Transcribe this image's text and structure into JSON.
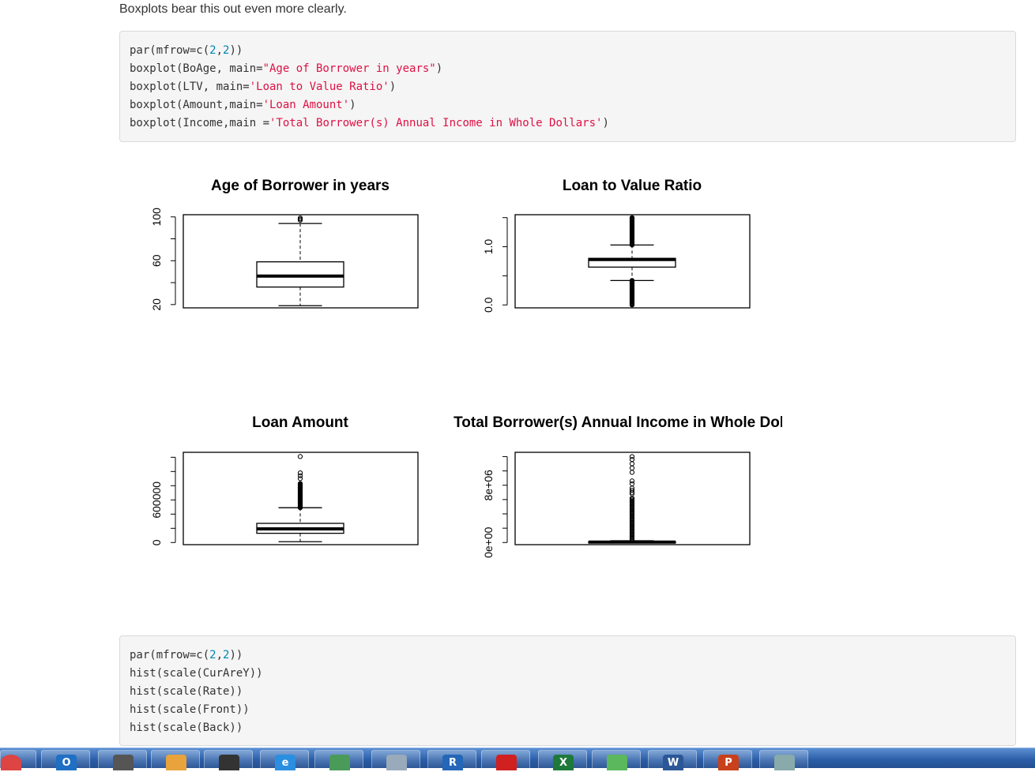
{
  "intro_text": "Boxplots bear this out even more clearly.",
  "code_block_1": [
    [
      {
        "t": "par(mfrow=c(",
        "c": "plain"
      },
      {
        "t": "2",
        "c": "num"
      },
      {
        "t": ",",
        "c": "plain"
      },
      {
        "t": "2",
        "c": "num"
      },
      {
        "t": "))",
        "c": "plain"
      }
    ],
    [
      {
        "t": "boxplot(BoAge, main=",
        "c": "plain"
      },
      {
        "t": "\"Age of Borrower in years\"",
        "c": "str"
      },
      {
        "t": ")",
        "c": "plain"
      }
    ],
    [
      {
        "t": "boxplot(LTV, main=",
        "c": "plain"
      },
      {
        "t": "'Loan to Value Ratio'",
        "c": "str"
      },
      {
        "t": ")",
        "c": "plain"
      }
    ],
    [
      {
        "t": "boxplot(Amount,main=",
        "c": "plain"
      },
      {
        "t": "'Loan Amount'",
        "c": "str"
      },
      {
        "t": ")",
        "c": "plain"
      }
    ],
    [
      {
        "t": "boxplot(Income,main =",
        "c": "plain"
      },
      {
        "t": "'Total Borrower(s) Annual Income in Whole Dollars'",
        "c": "str"
      },
      {
        "t": ")",
        "c": "plain"
      }
    ]
  ],
  "code_block_2": [
    [
      {
        "t": "par(mfrow=c(",
        "c": "plain"
      },
      {
        "t": "2",
        "c": "num"
      },
      {
        "t": ",",
        "c": "plain"
      },
      {
        "t": "2",
        "c": "num"
      },
      {
        "t": "))",
        "c": "plain"
      }
    ],
    [
      {
        "t": "hist(scale(CurAreY))",
        "c": "plain"
      }
    ],
    [
      {
        "t": "hist(scale(Rate))",
        "c": "plain"
      }
    ],
    [
      {
        "t": "hist(scale(Front))",
        "c": "plain"
      }
    ],
    [
      {
        "t": "hist(scale(Back))",
        "c": "plain"
      }
    ]
  ],
  "chart_data": [
    {
      "type": "boxplot",
      "title": "Age of Borrower in years",
      "ylim": [
        17,
        102
      ],
      "tick_labels": [
        "20",
        "60",
        "100"
      ],
      "minor_ticks": [
        20,
        40,
        60,
        80,
        100
      ],
      "major_ticks": [
        20,
        60,
        100
      ],
      "box": {
        "whisker_low": 19,
        "q1": 36,
        "median": 46,
        "q3": 59,
        "whisker_high": 94
      },
      "outliers": [
        97,
        98,
        99
      ]
    },
    {
      "type": "boxplot",
      "title": "Loan to Value Ratio",
      "ylim": [
        -0.05,
        1.55
      ],
      "tick_labels": [
        "0.0",
        "1.0"
      ],
      "minor_ticks": [
        0,
        0.5,
        1.0,
        1.5
      ],
      "major_ticks": [
        0,
        1.0
      ],
      "box": {
        "whisker_low": 0.42,
        "q1": 0.65,
        "median": 0.78,
        "q3": 0.8,
        "whisker_high": 1.03
      },
      "outliers_low_range": [
        0.0,
        0.42
      ],
      "outliers_high_range": [
        1.03,
        1.5
      ]
    },
    {
      "type": "boxplot",
      "title": "Loan Amount",
      "ylim": [
        -30000,
        1270000
      ],
      "tick_labels": [
        "0",
        "600000"
      ],
      "minor_ticks": [
        0,
        200000,
        400000,
        600000,
        800000,
        1000000,
        1200000
      ],
      "major_ticks": [
        0,
        600000
      ],
      "box": {
        "whisker_low": 12000,
        "q1": 130000,
        "median": 192000,
        "q3": 270000,
        "whisker_high": 490000
      },
      "outliers_high_range": [
        490000,
        830000
      ],
      "outliers": [
        900000,
        940000,
        980000,
        1210000
      ]
    },
    {
      "type": "boxplot",
      "title": "Total Borrower(s) Annual Income in Whole Dollars",
      "ylim": [
        -300000,
        12600000
      ],
      "tick_labels": [
        "0e+00",
        "8e+06"
      ],
      "minor_ticks": [
        0,
        2000000,
        4000000,
        6000000,
        8000000,
        10000000,
        12000000
      ],
      "major_ticks": [
        0,
        8000000
      ],
      "box": {
        "whisker_low": 0,
        "q1": 30000,
        "median": 60000,
        "q3": 110000,
        "whisker_high": 250000
      },
      "outliers_high_range": [
        250000,
        6200000
      ],
      "outliers": [
        6800000,
        7000000,
        7300000,
        7600000,
        8200000,
        8600000,
        9800000,
        10400000,
        11000000,
        11600000,
        12000000
      ]
    }
  ],
  "taskbar": {
    "items": [
      {
        "name": "chrome-taskbar-icon",
        "label": "",
        "color": "#d44"
      },
      {
        "name": "outlook-taskbar-icon",
        "label": "O",
        "color": "#1f6fc5"
      },
      {
        "name": "microphone-taskbar-icon",
        "label": "",
        "color": "#555"
      },
      {
        "name": "media-taskbar-icon",
        "label": "",
        "color": "#e8a33c"
      },
      {
        "name": "headphones-taskbar-icon",
        "label": "",
        "color": "#333"
      },
      {
        "name": "ie-taskbar-icon",
        "label": "e",
        "color": "#2a8fe0"
      },
      {
        "name": "network-taskbar-icon",
        "label": "",
        "color": "#4a9a5a"
      },
      {
        "name": "notes-taskbar-icon",
        "label": "",
        "color": "#9ab"
      },
      {
        "name": "r-taskbar-icon",
        "label": "R",
        "color": "#2466b8"
      },
      {
        "name": "acrobat-taskbar-icon",
        "label": "",
        "color": "#d02020"
      },
      {
        "name": "excel-taskbar-icon",
        "label": "X",
        "color": "#1e7a3a"
      },
      {
        "name": "wechat-taskbar-icon",
        "label": "",
        "color": "#5cb85c"
      },
      {
        "name": "word-taskbar-icon",
        "label": "W",
        "color": "#2b5797"
      },
      {
        "name": "powerpoint-taskbar-icon",
        "label": "P",
        "color": "#c8401c"
      },
      {
        "name": "window-taskbar-icon",
        "label": "",
        "color": "#8aa"
      }
    ]
  }
}
